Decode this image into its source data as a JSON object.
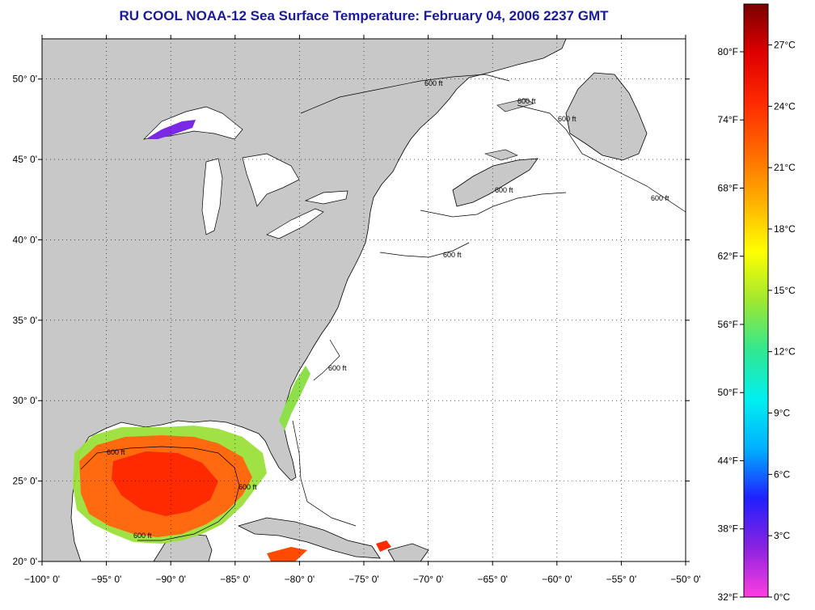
{
  "title": "RU COOL  NOAA-12  Sea Surface Temperature:  February 04, 2006 2237 GMT",
  "colors": {
    "land": "#c8c8c8",
    "no_data": "#ffffff",
    "coastline": "#000000",
    "grid": "#000000"
  },
  "map": {
    "projection": "equirectangular",
    "lon_range": [
      -100,
      -50
    ],
    "lat_range": [
      20,
      52.5
    ],
    "lon_ticks": [
      "−100° 0'",
      "−95° 0'",
      "−90° 0'",
      "−85° 0'",
      "−80° 0'",
      "−75° 0'",
      "−70° 0'",
      "−65° 0'",
      "−60° 0'",
      "−55° 0'",
      "−50° 0'"
    ],
    "lat_ticks": [
      "50° 0'",
      "45° 0'",
      "40° 0'",
      "35° 0'",
      "30° 0'",
      "25° 0'",
      "20° 0'"
    ],
    "contour_labels": [
      "600 ft",
      "600 ft",
      "600 ft",
      "600 ft",
      "600 ft",
      "600 ft",
      "600 ft",
      "600 ft",
      "600 ft",
      "600 ft"
    ]
  },
  "colorbar": {
    "range_c": [
      0,
      29
    ],
    "fahrenheit_labels": [
      "80°F",
      "74°F",
      "68°F",
      "62°F",
      "56°F",
      "50°F",
      "44°F",
      "38°F",
      "32°F"
    ],
    "celsius_labels": [
      "27°C",
      "24°C",
      "21°C",
      "18°C",
      "15°C",
      "12°C",
      "9°C",
      "6°C",
      "3°C",
      "0°C"
    ],
    "stops": [
      "#ff3ee0",
      "#8a22e0",
      "#2020ff",
      "#00b0ff",
      "#00f0f0",
      "#30e890",
      "#a0e830",
      "#ffff00",
      "#ffb000",
      "#ff6a00",
      "#ff2a00",
      "#e00000",
      "#7a0000"
    ]
  }
}
